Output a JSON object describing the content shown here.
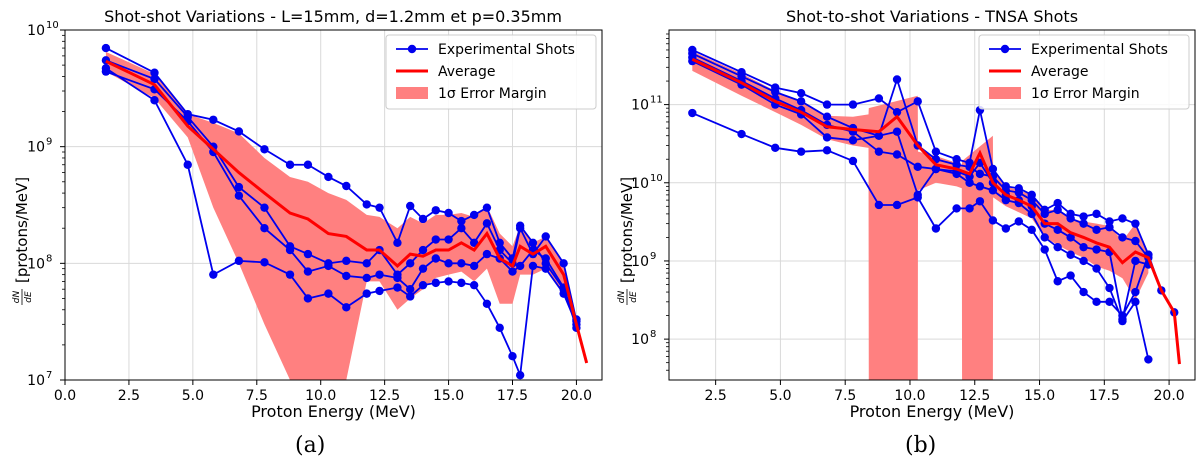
{
  "colors": {
    "shots": "#0000ee",
    "average": "#ff0000",
    "band": "#ff8080",
    "grid": "#d9d9d9"
  },
  "chart_data": [
    {
      "type": "line",
      "panel_label": "(a)",
      "title": "Shot-shot Variations - L=15mm, d=1.2mm et p=0.35mm",
      "xlabel": "Proton Energy (MeV)",
      "ylabel": "[protons/MeV]",
      "ylabel_fraction": {
        "numerator": "dN",
        "denominator": "dE"
      },
      "yscale": "log",
      "xlim": [
        0,
        21
      ],
      "ylim": [
        10000000,
        10000000000
      ],
      "grid": true,
      "x_ticks": [
        "0.0",
        "2.5",
        "5.0",
        "7.5",
        "10.0",
        "12.5",
        "15.0",
        "17.5",
        "20.0"
      ],
      "x_tick_values": [
        0,
        2.5,
        5,
        7.5,
        10,
        12.5,
        15,
        17.5,
        20
      ],
      "y_ticks": [
        {
          "base": "10",
          "exp": "7",
          "value": 10000000
        },
        {
          "base": "10",
          "exp": "8",
          "value": 100000000
        },
        {
          "base": "10",
          "exp": "9",
          "value": 1000000000
        },
        {
          "base": "10",
          "exp": "10",
          "value": 10000000000
        }
      ],
      "legend": {
        "placement": "top-right",
        "entries": [
          {
            "label": "Experimental Shots",
            "kind": "shots"
          },
          {
            "label": "Average",
            "kind": "average"
          },
          {
            "label": "1σ Error Margin",
            "kind": "band"
          }
        ]
      },
      "shots": [
        {
          "x": [
            1.6,
            3.5,
            4.8,
            5.8,
            6.8,
            7.8,
            8.8,
            9.5,
            10.3,
            11.0,
            11.8,
            12.3,
            13.0,
            13.5,
            14.0,
            14.5,
            15.0,
            15.5,
            16.0,
            16.5,
            17.0,
            17.5,
            17.8,
            18.3,
            18.8,
            19.5,
            20.0
          ],
          "y": [
            7000000000,
            4300000000,
            1900000000,
            1700000000,
            1350000000,
            950000000,
            700000000,
            700000000,
            550000000,
            460000000,
            320000000,
            300000000,
            150000000,
            310000000,
            240000000,
            285000000,
            270000000,
            230000000,
            260000000,
            300000000,
            150000000,
            110000000,
            210000000,
            150000000,
            100000000,
            60000000,
            33000000
          ]
        },
        {
          "x": [
            1.6,
            3.5,
            4.8,
            5.8,
            6.8,
            7.8,
            8.8,
            9.5,
            10.3,
            11.0,
            11.8,
            12.3,
            13.0,
            13.5,
            14.0,
            14.5,
            15.0,
            15.5,
            16.0,
            16.5,
            17.0,
            17.5,
            17.8,
            18.3,
            18.8,
            19.5,
            20.0
          ],
          "y": [
            5500000000,
            3800000000,
            1800000000,
            1000000000,
            450000000,
            300000000,
            140000000,
            120000000,
            100000000,
            105000000,
            100000000,
            130000000,
            80000000,
            100000000,
            130000000,
            160000000,
            160000000,
            200000000,
            150000000,
            220000000,
            130000000,
            100000000,
            200000000,
            120000000,
            170000000,
            100000000,
            32000000
          ]
        },
        {
          "x": [
            1.6,
            3.5,
            4.8,
            5.8,
            6.8,
            7.8,
            8.8,
            9.5,
            10.3,
            11.0,
            11.8,
            12.3,
            13.0,
            13.5,
            14.0,
            14.5,
            15.0,
            15.5,
            16.0,
            16.5,
            17.0,
            17.5,
            17.8,
            18.3,
            18.8,
            19.5,
            20.0
          ],
          "y": [
            4400000000,
            3100000000,
            1650000000,
            900000000,
            380000000,
            200000000,
            130000000,
            85000000,
            95000000,
            78000000,
            75000000,
            80000000,
            75000000,
            60000000,
            90000000,
            110000000,
            100000000,
            100000000,
            95000000,
            120000000,
            110000000,
            85000000,
            95000000,
            130000000,
            110000000,
            62000000,
            28000000
          ]
        },
        {
          "x": [
            1.6,
            3.5,
            4.8,
            5.8,
            6.8,
            7.8,
            8.8,
            9.5,
            10.3,
            11.0,
            11.8,
            12.3,
            13.0,
            13.5,
            14.0,
            14.5,
            15.0,
            15.5,
            16.0,
            16.5,
            17.0,
            17.5,
            17.8,
            18.3,
            18.8,
            19.5,
            20.0
          ],
          "y": [
            4700000000,
            2500000000,
            700000000,
            80000000,
            105000000,
            102000000,
            80000000,
            50000000,
            55000000,
            42000000,
            55000000,
            58000000,
            62000000,
            52000000,
            65000000,
            68000000,
            70000000,
            68000000,
            65000000,
            45000000,
            28000000,
            16000000,
            11000000,
            95000000,
            90000000,
            55000000,
            30000000
          ]
        }
      ],
      "average": {
        "x": [
          1.6,
          3.5,
          4.8,
          5.8,
          6.8,
          7.8,
          8.8,
          9.5,
          10.3,
          11.0,
          11.8,
          12.3,
          13.0,
          13.5,
          14.0,
          14.5,
          15.0,
          15.5,
          16.0,
          16.5,
          17.0,
          17.5,
          17.8,
          18.3,
          18.8,
          19.5,
          20.0,
          20.4
        ],
        "y": [
          5400000000,
          3400000000,
          1500000000,
          950000000,
          600000000,
          400000000,
          270000000,
          240000000,
          180000000,
          170000000,
          130000000,
          130000000,
          95000000,
          120000000,
          115000000,
          130000000,
          130000000,
          150000000,
          130000000,
          180000000,
          110000000,
          95000000,
          140000000,
          120000000,
          140000000,
          80000000,
          30000000,
          14000000
        ]
      },
      "band": {
        "x": [
          1.6,
          3.5,
          4.8,
          5.8,
          6.8,
          7.8,
          8.8,
          9.5,
          10.3,
          11.0,
          11.8,
          12.3,
          13.0,
          13.5,
          14.0,
          14.5,
          15.0,
          15.5,
          16.0,
          16.5,
          17.0,
          17.5,
          17.8,
          18.3,
          18.8,
          19.5,
          20.0
        ],
        "low": [
          4400000000,
          2600000000,
          1200000000,
          300000000,
          100000000,
          30000000,
          10000000,
          10000000,
          10000000,
          10000000,
          70000000,
          70000000,
          40000000,
          50000000,
          60000000,
          75000000,
          80000000,
          85000000,
          70000000,
          90000000,
          45000000,
          45000000,
          80000000,
          80000000,
          90000000,
          55000000,
          28000000
        ],
        "high": [
          6500000000,
          4200000000,
          1900000000,
          1600000000,
          1300000000,
          800000000,
          550000000,
          500000000,
          400000000,
          350000000,
          260000000,
          250000000,
          200000000,
          250000000,
          220000000,
          260000000,
          260000000,
          270000000,
          250000000,
          310000000,
          180000000,
          140000000,
          210000000,
          150000000,
          170000000,
          100000000,
          33000000
        ]
      }
    },
    {
      "type": "line",
      "panel_label": "(b)",
      "title": "Shot-to-shot Variations - TNSA Shots",
      "xlabel": "Proton Energy (MeV)",
      "ylabel": "[protons/MeV]",
      "ylabel_fraction": {
        "numerator": "dN",
        "denominator": "dE"
      },
      "yscale": "log",
      "xlim": [
        0.7,
        21
      ],
      "ylim": [
        30000000,
        900000000000
      ],
      "grid": true,
      "x_ticks": [
        "2.5",
        "5.0",
        "7.5",
        "10.0",
        "12.5",
        "15.0",
        "17.5",
        "20.0"
      ],
      "x_tick_values": [
        2.5,
        5,
        7.5,
        10,
        12.5,
        15,
        17.5,
        20
      ],
      "y_ticks": [
        {
          "base": "10",
          "exp": "8",
          "value": 100000000
        },
        {
          "base": "10",
          "exp": "9",
          "value": 1000000000
        },
        {
          "base": "10",
          "exp": "10",
          "value": 10000000000
        },
        {
          "base": "10",
          "exp": "11",
          "value": 100000000000
        }
      ],
      "legend": {
        "placement": "top-right",
        "entries": [
          {
            "label": "Experimental Shots",
            "kind": "shots"
          },
          {
            "label": "Average",
            "kind": "average"
          },
          {
            "label": "1σ Error Margin",
            "kind": "band"
          }
        ]
      },
      "shots": [
        {
          "x": [
            1.6,
            3.5,
            4.8,
            5.8,
            6.8,
            7.8,
            8.8,
            9.5,
            10.3,
            11.0,
            11.8,
            12.3,
            12.7,
            13.2,
            13.7,
            14.2,
            14.7,
            15.2,
            15.7,
            16.2,
            16.7,
            17.2,
            17.7,
            18.2,
            18.7,
            19.2
          ],
          "y": [
            500000000000,
            260000000000,
            165000000000,
            140000000000,
            100000000000,
            100000000000,
            120000000000,
            80000000000,
            110000000000,
            25000000000,
            20000000000,
            18000000000,
            85000000000,
            15000000000,
            9000000000,
            8500000000,
            7000000000,
            4500000000,
            5500000000,
            4000000000,
            3700000000,
            4000000000,
            3200000000,
            3500000000,
            3000000000,
            1200000000
          ]
        },
        {
          "x": [
            1.6,
            3.5,
            4.8,
            5.8,
            6.8,
            7.8,
            8.8,
            9.5,
            10.3,
            11.0,
            11.8,
            12.3,
            12.7,
            13.2,
            13.7,
            14.2,
            14.7,
            15.2,
            15.7,
            16.2,
            16.7,
            17.2,
            17.7,
            18.2,
            18.7,
            19.2
          ],
          "y": [
            450000000000,
            230000000000,
            145000000000,
            110000000000,
            70000000000,
            50000000000,
            40000000000,
            210000000000,
            30000000000,
            20000000000,
            17000000000,
            16000000000,
            13000000000,
            12000000000,
            8000000000,
            7500000000,
            6000000000,
            4000000000,
            4500000000,
            3500000000,
            3000000000,
            2500000000,
            2700000000,
            2000000000,
            1800000000,
            1100000000
          ]
        },
        {
          "x": [
            1.6,
            3.5,
            4.8,
            5.8,
            6.8,
            7.8,
            8.8,
            9.5,
            10.3,
            11.0,
            11.8,
            12.3,
            12.7,
            13.2,
            13.7,
            14.2,
            14.7,
            15.2,
            15.7,
            16.2,
            16.7,
            17.2,
            17.7,
            18.2,
            18.7,
            19.2
          ],
          "y": [
            400000000000,
            200000000000,
            120000000000,
            85000000000,
            55000000000,
            45000000000,
            25000000000,
            23000000000,
            16000000000,
            15000000000,
            14000000000,
            12000000000,
            18000000000,
            10000000000,
            7000000000,
            6000000000,
            5000000000,
            3000000000,
            2500000000,
            2000000000,
            1500000000,
            1400000000,
            1300000000,
            180000000,
            1000000000,
            900000000
          ]
        },
        {
          "x": [
            1.6,
            3.5,
            4.8,
            5.8,
            6.8,
            7.8,
            8.8,
            9.5,
            10.3,
            11.0,
            11.8,
            12.3,
            12.7,
            13.2,
            13.7,
            14.2,
            14.7,
            15.2,
            15.7,
            16.2,
            16.7,
            17.2,
            17.7,
            18.2,
            18.7,
            19.2
          ],
          "y": [
            360000000000,
            180000000000,
            100000000000,
            75000000000,
            38000000000,
            35000000000,
            40000000000,
            45000000000,
            7000000000,
            15000000000,
            13000000000,
            10000000000,
            9000000000,
            8000000000,
            6000000000,
            5500000000,
            4000000000,
            2000000000,
            1500000000,
            1200000000,
            1000000000,
            800000000,
            450000000,
            170000000,
            300000000,
            55000000
          ]
        },
        {
          "x": [
            1.6,
            3.5,
            4.8,
            5.8,
            6.8,
            7.8,
            8.8,
            9.5,
            10.3,
            11.0,
            11.8,
            12.3,
            12.7,
            13.2,
            13.7,
            14.2,
            14.7,
            15.2,
            15.7,
            16.2,
            16.7,
            17.2,
            17.7,
            18.2,
            18.7,
            19.2,
            19.7,
            20.2
          ],
          "y": [
            78000000000,
            42000000000,
            28000000000,
            25000000000,
            26000000000,
            19000000000,
            5200000000,
            5200000000,
            6500000000,
            2600000000,
            4700000000,
            4700000000,
            5800000000,
            3300000000,
            2600000000,
            3200000000,
            2500000000,
            1400000000,
            550000000,
            650000000,
            400000000,
            300000000,
            300000000,
            200000000,
            400000000,
            1200000000,
            420000000,
            220000000
          ]
        }
      ],
      "average": {
        "x": [
          1.6,
          3.5,
          4.8,
          5.8,
          6.8,
          7.8,
          8.8,
          9.5,
          10.3,
          11.0,
          11.8,
          12.3,
          12.7,
          13.2,
          13.7,
          14.2,
          14.7,
          15.2,
          15.7,
          16.2,
          16.7,
          17.2,
          17.7,
          18.2,
          18.7,
          19.2,
          19.7,
          20.2,
          20.4
        ],
        "y": [
          380000000000,
          190000000000,
          110000000000,
          80000000000,
          52000000000,
          48000000000,
          45000000000,
          70000000000,
          30000000000,
          17000000000,
          15000000000,
          13000000000,
          24000000000,
          10000000000,
          7000000000,
          6000000000,
          5000000000,
          3000000000,
          3000000000,
          2300000000,
          2000000000,
          1700000000,
          1500000000,
          950000000,
          1300000000,
          1100000000,
          420000000,
          220000000,
          48000000
        ]
      },
      "band": {
        "x": [
          1.6,
          3.5,
          4.8,
          5.8,
          6.8,
          7.8,
          8.4,
          8.41,
          10.3,
          10.31,
          11.0,
          11.8,
          12.0,
          12.01,
          13.2,
          13.21,
          13.7,
          14.2,
          14.7,
          15.2,
          15.7,
          16.2,
          16.7,
          17.2,
          17.7,
          18.2,
          18.7,
          19.2
        ],
        "low": [
          270000000000,
          130000000000,
          80000000000,
          55000000000,
          36000000000,
          30000000000,
          28000000000,
          30000000,
          30000000,
          8000000000,
          10000000000,
          9000000000,
          8500000000,
          30000000,
          30000000,
          6500000000,
          5000000000,
          4200000000,
          3500000000,
          2000000000,
          1600000000,
          1300000000,
          1100000000,
          850000000,
          750000000,
          600000000,
          320000000,
          700000000
        ],
        "high": [
          480000000000,
          250000000000,
          150000000000,
          110000000000,
          72000000000,
          70000000000,
          75000000000,
          90000000000,
          130000000000,
          25000000000,
          22000000000,
          18000000000,
          17000000000,
          19000000000,
          40000000000,
          14000000000,
          9000000000,
          8000000000,
          7000000000,
          4500000000,
          4500000000,
          3500000000,
          3200000000,
          3000000000,
          2800000000,
          1800000000,
          3000000000,
          1300000000
        ]
      }
    }
  ]
}
